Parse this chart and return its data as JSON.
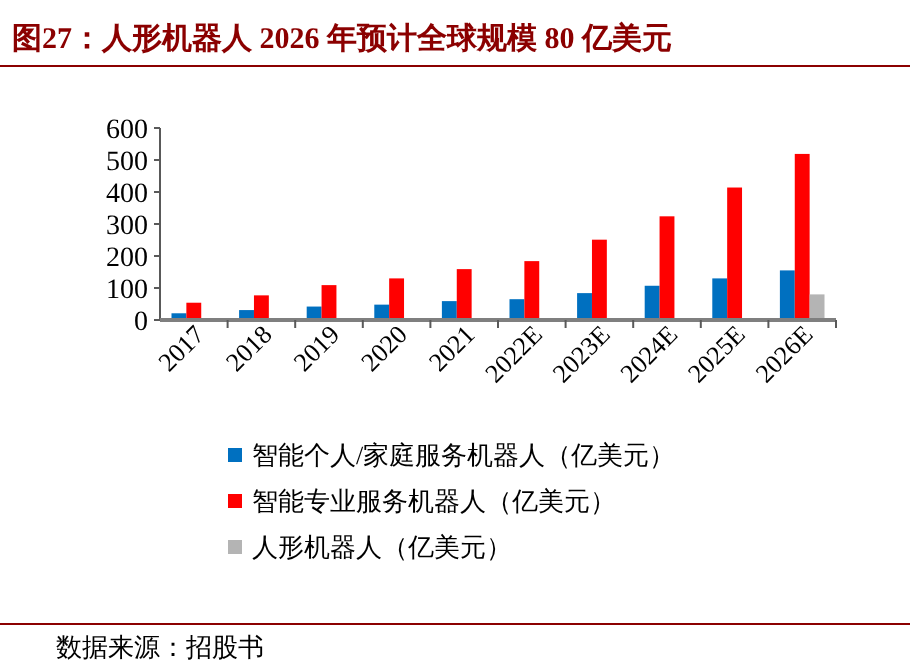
{
  "chart_data": {
    "type": "bar",
    "title": "图27：人形机器人 2026 年预计全球规模 80 亿美元",
    "categories": [
      "2017",
      "2018",
      "2019",
      "2020",
      "2021",
      "2022E",
      "2023E",
      "2024E",
      "2025E",
      "2026E"
    ],
    "series": [
      {
        "name": "智能个人/家庭服务机器人（亿美元）",
        "color": "#0070c0",
        "values": [
          21,
          31,
          42,
          48,
          59,
          65,
          84,
          107,
          130,
          155
        ]
      },
      {
        "name": "智能专业服务机器人（亿美元）",
        "color": "#ff0000",
        "values": [
          54,
          77,
          109,
          130,
          159,
          184,
          251,
          324,
          414,
          519
        ]
      },
      {
        "name": "人形机器人（亿美元）",
        "color": "#b4b4b4",
        "values": [
          null,
          null,
          null,
          null,
          null,
          null,
          null,
          null,
          null,
          80
        ]
      }
    ],
    "ylim": [
      0,
      600
    ],
    "yticks": [
      0,
      100,
      200,
      300,
      400,
      500,
      600
    ],
    "grid": false,
    "legend": "bottom",
    "annotations": [
      "数据来源：招股书"
    ]
  }
}
